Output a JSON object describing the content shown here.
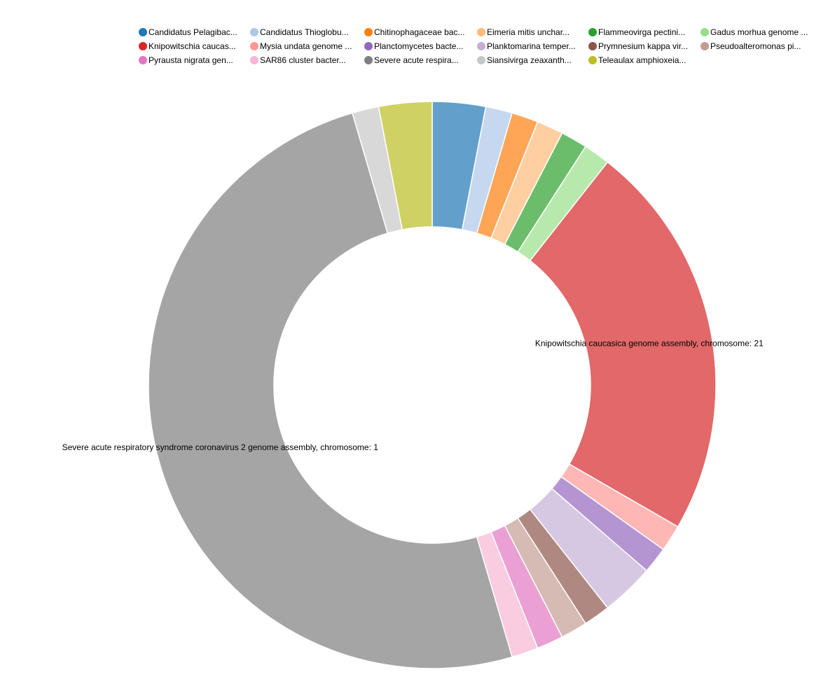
{
  "chart_data": {
    "type": "pie",
    "donut": true,
    "legend_position": "top",
    "slices": [
      {
        "label": "Candidatus Pelagibac...",
        "value": 3,
        "color": "#1f77b4"
      },
      {
        "label": "Candidatus Thioglobu...",
        "value": 1.5,
        "color": "#aec7e8"
      },
      {
        "label": "Chitinophagaceae bac...",
        "value": 1.5,
        "color": "#ff7f0e"
      },
      {
        "label": "Eimeria mitis unchar...",
        "value": 1.5,
        "color": "#ffbb78"
      },
      {
        "label": "Flammeovirga pectini...",
        "value": 1.5,
        "color": "#2ca02c"
      },
      {
        "label": "Gadus morhua genome ...",
        "value": 1.5,
        "color": "#98df8a"
      },
      {
        "label": "Knipowitschia caucas...",
        "value": 22.5,
        "color": "#d62728",
        "callout": "Knipowitschia caucasica genome assembly, chromosome: 21"
      },
      {
        "label": "Mysia undata genome ...",
        "value": 1.5,
        "color": "#ff9896"
      },
      {
        "label": "Planctomycetes bacte...",
        "value": 1.5,
        "color": "#9467bd"
      },
      {
        "label": "Planktomarina temper...",
        "value": 3,
        "color": "#c5b0d5"
      },
      {
        "label": "Prymnesium kappa vir...",
        "value": 1.5,
        "color": "#8c564b"
      },
      {
        "label": "Pseudoalteromonas pi...",
        "value": 1.5,
        "color": "#c49c94"
      },
      {
        "label": "Pyrausta nigrata gen...",
        "value": 1.5,
        "color": "#e377c2"
      },
      {
        "label": "SAR86 cluster bacter...",
        "value": 1.5,
        "color": "#f7b6d2"
      },
      {
        "label": "Severe acute respira...",
        "value": 49.5,
        "color": "#7f7f7f",
        "callout": "Severe acute respiratory syndrome coronavirus 2 genome assembly, chromosome: 1"
      },
      {
        "label": "Siansivirga zeaxanth...",
        "value": 1.5,
        "color": "#c7c7c7"
      },
      {
        "label": "Teleaulax amphioxeia...",
        "value": 3,
        "color": "#bcbd22"
      }
    ]
  }
}
